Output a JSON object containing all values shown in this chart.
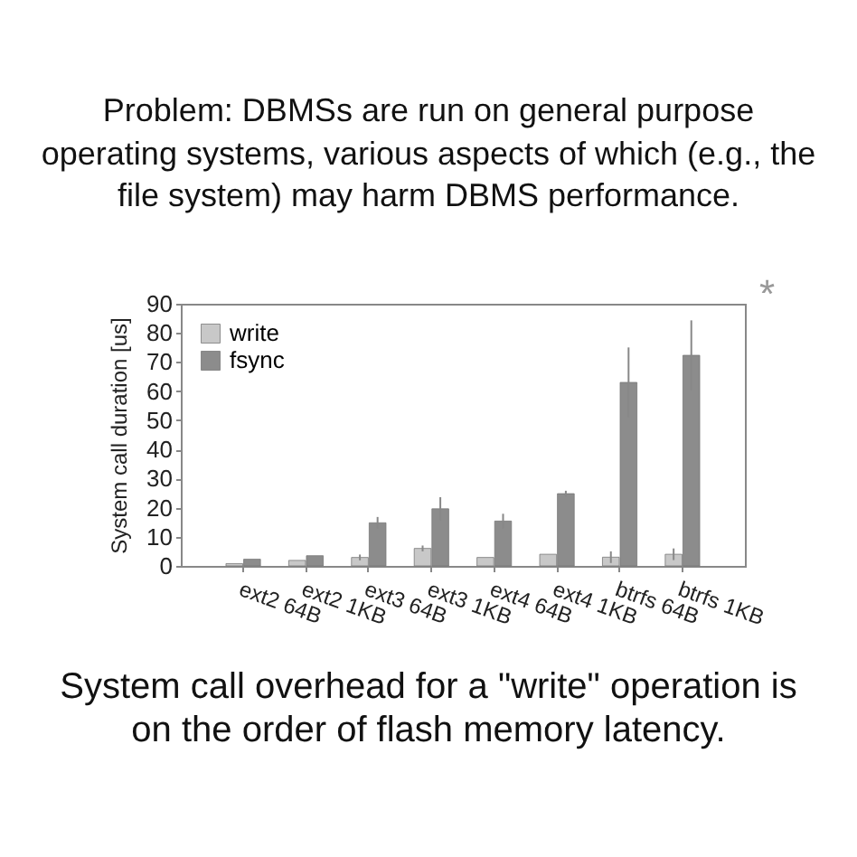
{
  "chart_data": {
    "type": "bar",
    "title": "Problem: DBMSs are run on general purpose\noperating systems, various aspects of which (e.g., the\nfile system) may harm DBMS performance.",
    "ylabel": "System call duration [us]",
    "categories": [
      "ext2 64B",
      "ext2 1KB",
      "ext3 64B",
      "ext3 1KB",
      "ext4 64B",
      "ext4 1KB",
      "btrfs 64B",
      "btrfs 1KB"
    ],
    "series": [
      {
        "name": "write",
        "color": "#c8c8c8",
        "values": [
          0.8,
          1.9,
          2.9,
          6,
          2.9,
          4,
          3,
          4
        ],
        "errors": [
          null,
          null,
          1,
          1,
          null,
          null,
          2,
          2
        ]
      },
      {
        "name": "fsync",
        "color": "#8c8c8c",
        "values": [
          2.3,
          3.5,
          14.8,
          19.6,
          15.4,
          24.8,
          63,
          72.3
        ],
        "errors": [
          null,
          null,
          2,
          4,
          2.5,
          1,
          12,
          12
        ]
      }
    ],
    "ylim": [
      0,
      90
    ],
    "yticks": [
      0,
      10,
      20,
      30,
      40,
      50,
      60,
      70,
      80,
      90
    ],
    "legend": "top left",
    "annotations": [
      "*",
      "System call overhead for a \"write\" operation is\non the order of flash memory latency."
    ]
  }
}
